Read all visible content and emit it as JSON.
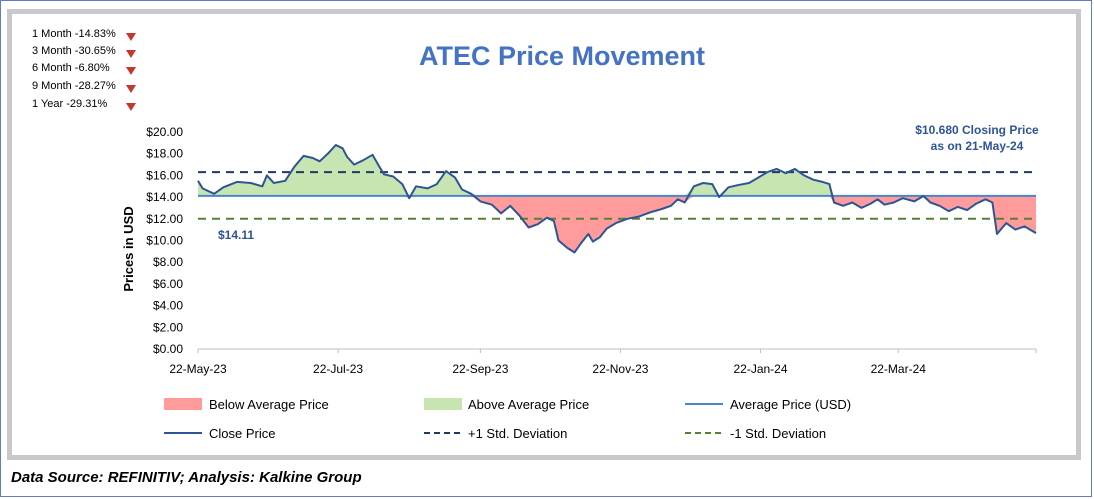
{
  "performance": [
    {
      "label": "1 Month -14.83%",
      "direction": "down"
    },
    {
      "label": "3 Month -30.65%",
      "direction": "down"
    },
    {
      "label": "6 Month -6.80%",
      "direction": "down"
    },
    {
      "label": "9 Month -28.27%",
      "direction": "down"
    },
    {
      "label": "1 Year -29.31%",
      "direction": "down"
    }
  ],
  "footer": {
    "source": "Data Source: REFINITIV; Analysis: Kalkine Group"
  },
  "colors": {
    "title": "#4472c4",
    "close_line": "#2e5496",
    "average_line": "#4a86c8",
    "plus_sd": "#1f3864",
    "minus_sd": "#548235",
    "above_fill": "#c6e5b0",
    "below_fill": "#ff9b9b"
  },
  "chart_data": {
    "type": "line",
    "title": "ATEC Price Movement",
    "xlabel": "",
    "ylabel": "Prices in USD",
    "ylim": [
      0,
      20
    ],
    "yticks": [
      0,
      2,
      4,
      6,
      8,
      10,
      12,
      14,
      16,
      18,
      20
    ],
    "ytick_labels": [
      "$0.00",
      "$2.00",
      "$4.00",
      "$6.00",
      "$8.00",
      "$10.00",
      "$12.00",
      "$14.00",
      "$16.00",
      "$18.00",
      "$20.00"
    ],
    "xrange": [
      "22-May-23",
      "21-May-24"
    ],
    "xticks": [
      "22-May-23",
      "22-Jul-23",
      "22-Sep-23",
      "22-Nov-23",
      "22-Jan-24",
      "22-Mar-24"
    ],
    "average_price": 14.11,
    "average_label": "$14.11",
    "plus_1_sd": 16.3,
    "minus_1_sd": 12.0,
    "closing_annotation": [
      "$10.680 Closing Price",
      "as on 21-May-24"
    ],
    "legend": [
      "Below Average Price",
      "Above Average Price",
      "Average Price (USD)",
      "Close Price",
      "+1 Std. Deviation",
      "-1 Std. Deviation"
    ],
    "legend_position": "bottom",
    "close_series": [
      {
        "date": "2023-05-22",
        "price": 15.5
      },
      {
        "date": "2023-05-24",
        "price": 14.8
      },
      {
        "date": "2023-05-29",
        "price": 14.3
      },
      {
        "date": "2023-06-02",
        "price": 14.9
      },
      {
        "date": "2023-06-08",
        "price": 15.4
      },
      {
        "date": "2023-06-14",
        "price": 15.3
      },
      {
        "date": "2023-06-19",
        "price": 15.0
      },
      {
        "date": "2023-06-21",
        "price": 16.0
      },
      {
        "date": "2023-06-24",
        "price": 15.3
      },
      {
        "date": "2023-06-29",
        "price": 15.5
      },
      {
        "date": "2023-07-03",
        "price": 16.8
      },
      {
        "date": "2023-07-07",
        "price": 17.8
      },
      {
        "date": "2023-07-11",
        "price": 17.6
      },
      {
        "date": "2023-07-14",
        "price": 17.3
      },
      {
        "date": "2023-07-18",
        "price": 18.1
      },
      {
        "date": "2023-07-21",
        "price": 18.8
      },
      {
        "date": "2023-07-24",
        "price": 18.5
      },
      {
        "date": "2023-07-26",
        "price": 17.7
      },
      {
        "date": "2023-07-29",
        "price": 17.0
      },
      {
        "date": "2023-08-02",
        "price": 17.4
      },
      {
        "date": "2023-08-06",
        "price": 17.9
      },
      {
        "date": "2023-08-09",
        "price": 16.8
      },
      {
        "date": "2023-08-11",
        "price": 16.1
      },
      {
        "date": "2023-08-15",
        "price": 15.9
      },
      {
        "date": "2023-08-19",
        "price": 15.2
      },
      {
        "date": "2023-08-22",
        "price": 13.9
      },
      {
        "date": "2023-08-25",
        "price": 15.0
      },
      {
        "date": "2023-08-30",
        "price": 14.8
      },
      {
        "date": "2023-09-03",
        "price": 15.2
      },
      {
        "date": "2023-09-07",
        "price": 16.4
      },
      {
        "date": "2023-09-11",
        "price": 15.8
      },
      {
        "date": "2023-09-14",
        "price": 14.7
      },
      {
        "date": "2023-09-18",
        "price": 14.3
      },
      {
        "date": "2023-09-22",
        "price": 13.6
      },
      {
        "date": "2023-09-27",
        "price": 13.3
      },
      {
        "date": "2023-10-01",
        "price": 12.5
      },
      {
        "date": "2023-10-05",
        "price": 13.2
      },
      {
        "date": "2023-10-09",
        "price": 12.3
      },
      {
        "date": "2023-10-13",
        "price": 11.2
      },
      {
        "date": "2023-10-17",
        "price": 11.5
      },
      {
        "date": "2023-10-21",
        "price": 12.1
      },
      {
        "date": "2023-10-24",
        "price": 11.8
      },
      {
        "date": "2023-10-26",
        "price": 10.0
      },
      {
        "date": "2023-10-30",
        "price": 9.3
      },
      {
        "date": "2023-11-02",
        "price": 8.9
      },
      {
        "date": "2023-11-05",
        "price": 9.8
      },
      {
        "date": "2023-11-08",
        "price": 10.6
      },
      {
        "date": "2023-11-10",
        "price": 9.9
      },
      {
        "date": "2023-11-13",
        "price": 10.3
      },
      {
        "date": "2023-11-16",
        "price": 11.1
      },
      {
        "date": "2023-11-20",
        "price": 11.6
      },
      {
        "date": "2023-11-25",
        "price": 12.0
      },
      {
        "date": "2023-11-30",
        "price": 12.2
      },
      {
        "date": "2023-12-05",
        "price": 12.6
      },
      {
        "date": "2023-12-10",
        "price": 12.9
      },
      {
        "date": "2023-12-14",
        "price": 13.2
      },
      {
        "date": "2023-12-17",
        "price": 13.8
      },
      {
        "date": "2023-12-20",
        "price": 13.5
      },
      {
        "date": "2023-12-24",
        "price": 15.0
      },
      {
        "date": "2023-12-28",
        "price": 15.3
      },
      {
        "date": "2024-01-01",
        "price": 15.2
      },
      {
        "date": "2024-01-04",
        "price": 14.0
      },
      {
        "date": "2024-01-08",
        "price": 14.9
      },
      {
        "date": "2024-01-12",
        "price": 15.1
      },
      {
        "date": "2024-01-17",
        "price": 15.3
      },
      {
        "date": "2024-01-21",
        "price": 15.8
      },
      {
        "date": "2024-01-25",
        "price": 16.3
      },
      {
        "date": "2024-01-29",
        "price": 16.6
      },
      {
        "date": "2024-02-02",
        "price": 16.2
      },
      {
        "date": "2024-02-06",
        "price": 16.6
      },
      {
        "date": "2024-02-10",
        "price": 16.0
      },
      {
        "date": "2024-02-14",
        "price": 15.6
      },
      {
        "date": "2024-02-18",
        "price": 15.4
      },
      {
        "date": "2024-02-21",
        "price": 15.2
      },
      {
        "date": "2024-02-23",
        "price": 13.5
      },
      {
        "date": "2024-02-27",
        "price": 13.2
      },
      {
        "date": "2024-03-02",
        "price": 13.5
      },
      {
        "date": "2024-03-06",
        "price": 13.0
      },
      {
        "date": "2024-03-10",
        "price": 13.4
      },
      {
        "date": "2024-03-13",
        "price": 13.8
      },
      {
        "date": "2024-03-16",
        "price": 13.3
      },
      {
        "date": "2024-03-20",
        "price": 13.5
      },
      {
        "date": "2024-03-24",
        "price": 13.9
      },
      {
        "date": "2024-03-29",
        "price": 13.6
      },
      {
        "date": "2024-04-02",
        "price": 14.1
      },
      {
        "date": "2024-04-05",
        "price": 13.5
      },
      {
        "date": "2024-04-09",
        "price": 13.2
      },
      {
        "date": "2024-04-13",
        "price": 12.7
      },
      {
        "date": "2024-04-17",
        "price": 13.1
      },
      {
        "date": "2024-04-21",
        "price": 12.8
      },
      {
        "date": "2024-04-25",
        "price": 13.4
      },
      {
        "date": "2024-04-29",
        "price": 13.8
      },
      {
        "date": "2024-05-02",
        "price": 13.5
      },
      {
        "date": "2024-05-04",
        "price": 10.6
      },
      {
        "date": "2024-05-08",
        "price": 11.6
      },
      {
        "date": "2024-05-12",
        "price": 11.0
      },
      {
        "date": "2024-05-16",
        "price": 11.3
      },
      {
        "date": "2024-05-21",
        "price": 10.68
      }
    ]
  }
}
